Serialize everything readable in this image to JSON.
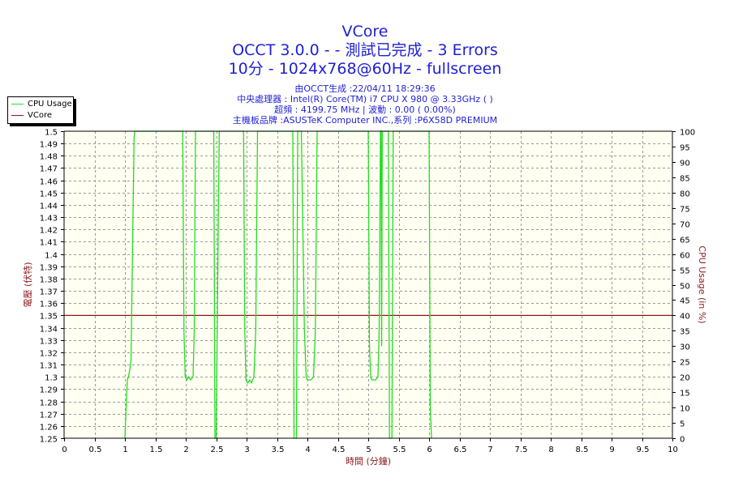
{
  "title_lines": [
    "VCore",
    "OCCT 3.0.0 -  - 測試已完成 - 3 Errors",
    "10分 - 1024x768@60Hz - fullscreen"
  ],
  "info_lines": [
    "由OCCT生成 :22/04/11 18:29:36",
    "中央處理器 : Intel(R) Core(TM) i7 CPU X 980 @ 3.33GHz (  )",
    "超頻 : 4199.75 MHz | 波動 : 0.00 ( 0.00%)",
    "主機板品牌 :ASUSTeK Computer INC.,系列 :P6X58D PREMIUM"
  ],
  "legend": [
    {
      "label": "CPU Usage",
      "color": "#22dd22"
    },
    {
      "label": "VCore",
      "color": "#8b1a1a"
    }
  ],
  "chart_data": {
    "type": "line",
    "xlabel": "時間 (分鐘)",
    "ylabel_left": "電壓 (伏特)",
    "ylabel_right": "CPU Usage (in %)",
    "xlim": [
      0,
      10
    ],
    "ylim_left": [
      1.25,
      1.5
    ],
    "ylim_right": [
      0,
      100
    ],
    "x_ticks": [
      "0",
      "0.5",
      "1",
      "1.5",
      "2",
      "2.5",
      "3",
      "3.5",
      "4",
      "4.5",
      "5",
      "5.5",
      "6",
      "6.5",
      "7",
      "7.5",
      "8",
      "8.5",
      "9",
      "9.5",
      "10"
    ],
    "y_ticks_left": [
      "1.25",
      "1.26",
      "1.27",
      "1.28",
      "1.29",
      "1.3",
      "1.31",
      "1.32",
      "1.33",
      "1.34",
      "1.35",
      "1.36",
      "1.37",
      "1.38",
      "1.39",
      "1.4",
      "1.41",
      "1.42",
      "1.43",
      "1.44",
      "1.45",
      "1.46",
      "1.47",
      "1.48",
      "1.49",
      "1.5"
    ],
    "y_ticks_right": [
      "0",
      "5",
      "10",
      "15",
      "20",
      "25",
      "30",
      "35",
      "40",
      "45",
      "50",
      "55",
      "60",
      "65",
      "70",
      "75",
      "80",
      "85",
      "90",
      "95",
      "100"
    ],
    "grid": true,
    "series": [
      {
        "name": "VCore",
        "axis": "left",
        "color": "#8b1a1a",
        "x": [
          0,
          10
        ],
        "y": [
          1.35,
          1.35
        ]
      },
      {
        "name": "CPU Usage",
        "axis": "right",
        "color": "#22dd22",
        "x": [
          1.0,
          1.02,
          1.04,
          1.06,
          1.1,
          1.15,
          1.16,
          1.18,
          1.2,
          1.3,
          1.5,
          1.8,
          1.95,
          1.97,
          1.99,
          2.02,
          2.05,
          2.08,
          2.12,
          2.14,
          2.16,
          2.18,
          2.3,
          2.46,
          2.47,
          2.48,
          2.5,
          2.55,
          2.6,
          2.7,
          2.8,
          2.95,
          2.97,
          2.99,
          3.02,
          3.05,
          3.08,
          3.12,
          3.15,
          3.18,
          3.2,
          3.35,
          3.55,
          3.74,
          3.76,
          3.78,
          3.8,
          3.82,
          3.84,
          3.86,
          3.9,
          3.95,
          3.98,
          4.0,
          4.03,
          4.06,
          4.1,
          4.13,
          4.16,
          4.18,
          4.2,
          4.3,
          4.5,
          4.75,
          4.9,
          5.0,
          5.02,
          5.04,
          5.06,
          5.08,
          5.12,
          5.16,
          5.18,
          5.2,
          5.21,
          5.22,
          5.23,
          5.26,
          5.3,
          5.33,
          5.35,
          5.37,
          5.39,
          5.41,
          5.43,
          5.5,
          5.7,
          5.9,
          6.0,
          6.02,
          6.04
        ],
        "y": [
          0,
          10,
          19,
          20,
          25,
          98,
          100,
          100,
          100,
          100,
          100,
          100,
          100,
          35,
          20,
          19,
          20,
          19,
          20,
          35,
          100,
          100,
          100,
          100,
          50,
          0,
          0,
          100,
          100,
          100,
          100,
          100,
          35,
          19,
          18,
          19,
          18,
          20,
          35,
          100,
          100,
          100,
          100,
          100,
          100,
          0,
          0,
          0,
          100,
          100,
          100,
          35,
          20,
          19,
          19,
          19,
          20,
          35,
          100,
          100,
          100,
          100,
          100,
          100,
          100,
          100,
          30,
          20,
          19,
          19,
          19,
          20,
          35,
          100,
          100,
          30,
          100,
          100,
          100,
          100,
          0,
          0,
          0,
          100,
          100,
          100,
          100,
          100,
          100,
          10,
          0
        ]
      }
    ]
  }
}
